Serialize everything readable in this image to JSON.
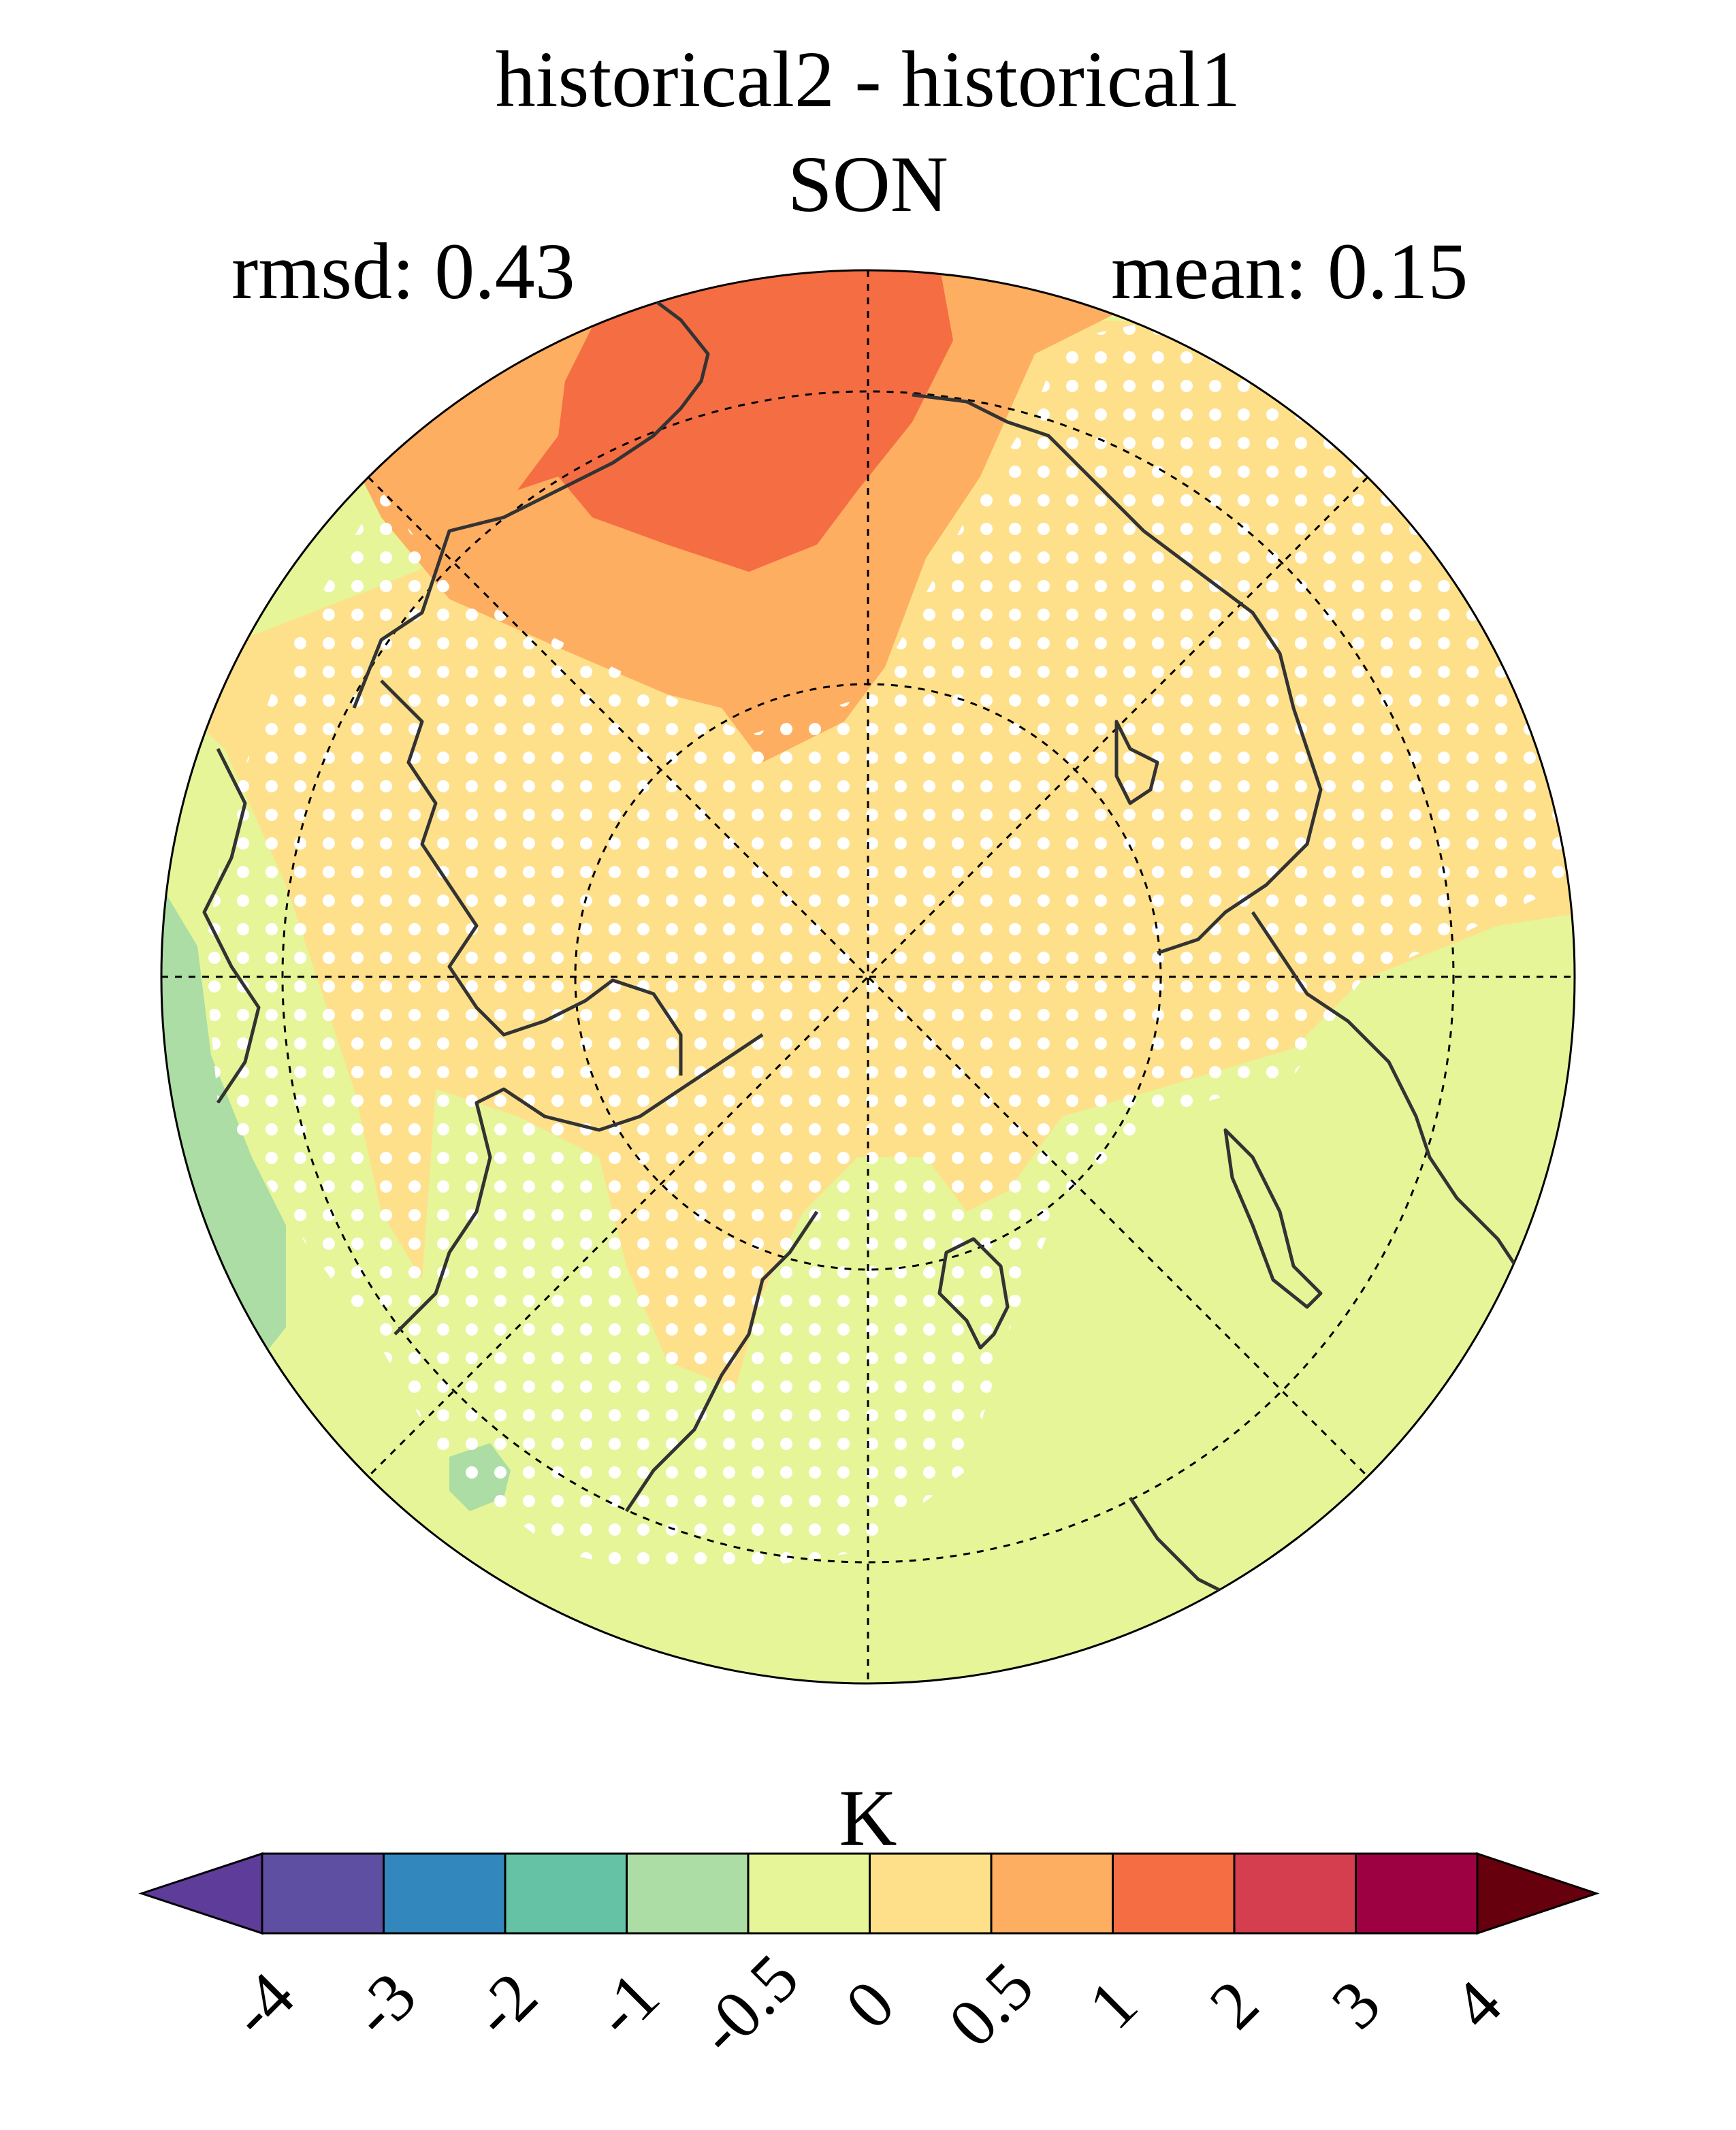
{
  "title": "historical2 - historical1",
  "season": "SON",
  "stats": {
    "rmsd": "rmsd: 0.43",
    "mean": "mean: 0.15"
  },
  "colorbar": {
    "unit": "K",
    "ticks": [
      "-4",
      "-3",
      "-2",
      "-1",
      "-0.5",
      "0",
      "0.5",
      "1",
      "2",
      "3",
      "4"
    ],
    "colors": [
      "#5e3c99",
      "#5e4fa2",
      "#3288bd",
      "#66c2a5",
      "#abdda4",
      "#e6f598",
      "#fee08b",
      "#fdae61",
      "#f46d43",
      "#d53e4f",
      "#9e0142",
      "#67000d"
    ],
    "extend": "both"
  },
  "map": {
    "projection": "north polar stereographic",
    "stippling": "white dots",
    "colors": {
      "coast": "#333333",
      "grid": "#000000",
      "stipple": "#ffffff"
    }
  }
}
